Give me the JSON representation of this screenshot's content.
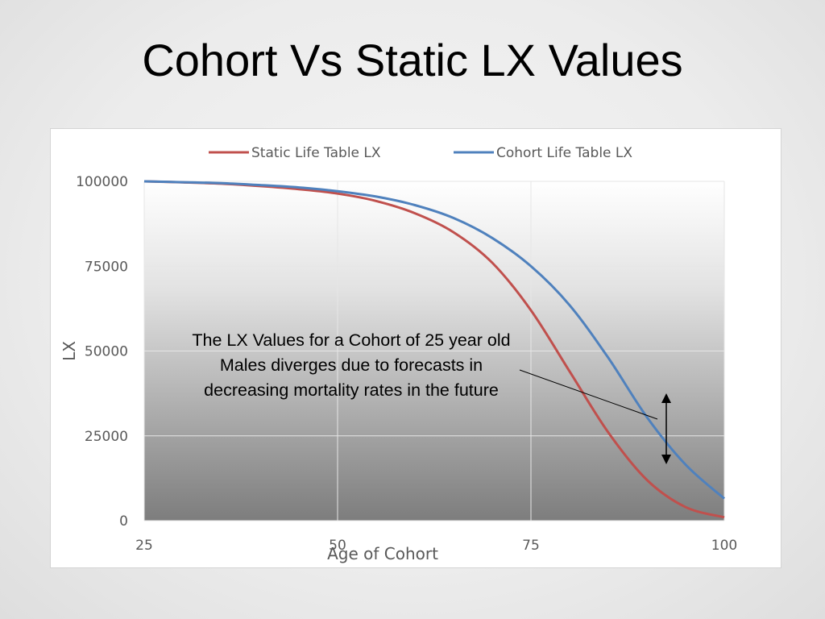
{
  "slide": {
    "title": "Cohort Vs Static LX Values"
  },
  "chart_data": {
    "type": "line",
    "xlabel": "Age of Cohort",
    "ylabel": "LX",
    "xlim": [
      25,
      100
    ],
    "ylim": [
      0,
      100000
    ],
    "xticks": [
      25,
      50,
      75,
      100
    ],
    "yticks": [
      0,
      25000,
      50000,
      75000,
      100000
    ],
    "grid": true,
    "legend_position": "top",
    "x": [
      25,
      30,
      35,
      40,
      45,
      50,
      55,
      60,
      65,
      70,
      75,
      80,
      85,
      90,
      95,
      100
    ],
    "series": [
      {
        "name": "Static Life Table LX",
        "color": "#c0504d",
        "values": [
          100000,
          99700,
          99300,
          98600,
          97700,
          96400,
          94200,
          90600,
          85000,
          76000,
          62000,
          44000,
          26000,
          12000,
          4000,
          1000
        ]
      },
      {
        "name": "Cohort Life Table LX",
        "color": "#4f81bd",
        "values": [
          100000,
          99750,
          99450,
          98900,
          98200,
          97100,
          95500,
          93000,
          89200,
          83300,
          75000,
          63500,
          48000,
          30500,
          16500,
          6500
        ]
      }
    ],
    "annotation": {
      "lines": [
        "The LX Values for a Cohort of 25 year old",
        "Males diverges due to forecasts in",
        "decreasing mortality rates in the future"
      ]
    }
  }
}
